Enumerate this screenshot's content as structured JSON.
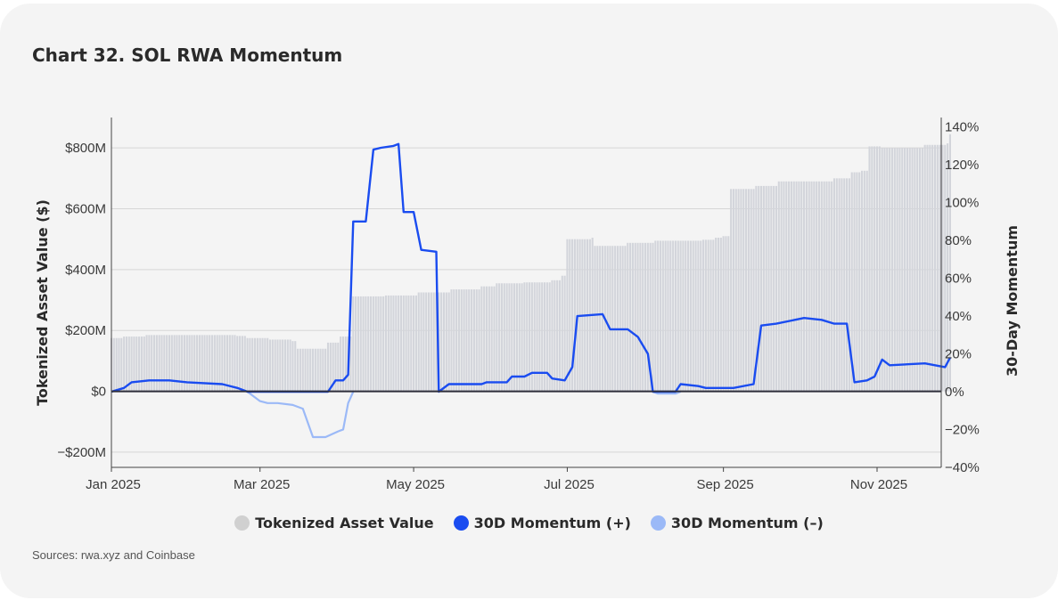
{
  "title": "Chart 32.  SOL RWA Momentum",
  "source": "Sources: rwa.xyz and Coinbase",
  "legend": [
    {
      "label": "Tokenized Asset Value",
      "color": "#d0d0d0"
    },
    {
      "label": "30D Momentum (+)",
      "color": "#1a4cf0"
    },
    {
      "label": "30D Momentum (–)",
      "color": "#9bb9f7"
    }
  ],
  "chart_data": {
    "type": "bar+line",
    "xlabel": "",
    "x_ticks": [
      "Jan 2025",
      "Mar 2025",
      "May 2025",
      "Jul 2025",
      "Sep 2025",
      "Nov 2025"
    ],
    "x_range": [
      "2025-01-01",
      "2025-11-30"
    ],
    "y_left": {
      "label": "Tokenized Asset Value ($)",
      "range": [
        -250,
        900
      ],
      "ticks": [
        "−$200M",
        "$0",
        "$200M",
        "$400M",
        "$600M",
        "$800M"
      ],
      "tick_values": [
        -200,
        0,
        200,
        400,
        600,
        800
      ],
      "unit": "$M"
    },
    "y_right": {
      "label": "30-Day Momentum",
      "range": [
        -40,
        145
      ],
      "ticks": [
        "−40%",
        "−20%",
        "0%",
        "20%",
        "40%",
        "60%",
        "80%",
        "100%",
        "120%",
        "140%"
      ],
      "tick_values": [
        -40,
        -20,
        0,
        20,
        40,
        60,
        80,
        100,
        120,
        140
      ],
      "unit": "%"
    },
    "grid": "horizontal",
    "bars": {
      "name": "Tokenized Asset Value",
      "points": [
        [
          "2025-01-01",
          175
        ],
        [
          "2025-01-06",
          180
        ],
        [
          "2025-01-15",
          185
        ],
        [
          "2025-02-01",
          185
        ],
        [
          "2025-02-20",
          182
        ],
        [
          "2025-02-24",
          175
        ],
        [
          "2025-03-05",
          170
        ],
        [
          "2025-03-14",
          165
        ],
        [
          "2025-03-16",
          140
        ],
        [
          "2025-03-28",
          160
        ],
        [
          "2025-04-02",
          180
        ],
        [
          "2025-04-07",
          312
        ],
        [
          "2025-04-20",
          315
        ],
        [
          "2025-05-03",
          325
        ],
        [
          "2025-05-16",
          335
        ],
        [
          "2025-05-28",
          345
        ],
        [
          "2025-06-03",
          355
        ],
        [
          "2025-06-14",
          358
        ],
        [
          "2025-06-25",
          365
        ],
        [
          "2025-06-29",
          380
        ],
        [
          "2025-07-01",
          500
        ],
        [
          "2025-07-11",
          505
        ],
        [
          "2025-07-12",
          478
        ],
        [
          "2025-07-25",
          488
        ],
        [
          "2025-08-05",
          495
        ],
        [
          "2025-08-24",
          498
        ],
        [
          "2025-08-29",
          505
        ],
        [
          "2025-09-01",
          510
        ],
        [
          "2025-09-04",
          665
        ],
        [
          "2025-09-14",
          675
        ],
        [
          "2025-09-23",
          690
        ],
        [
          "2025-10-15",
          700
        ],
        [
          "2025-10-22",
          720
        ],
        [
          "2025-10-26",
          725
        ],
        [
          "2025-10-29",
          805
        ],
        [
          "2025-11-03",
          800
        ],
        [
          "2025-11-20",
          810
        ],
        [
          "2025-11-29",
          815
        ],
        [
          "2025-11-30",
          845
        ]
      ]
    },
    "series": [
      {
        "name": "30D Momentum (+)",
        "color": "#1a4cf0",
        "points": [
          [
            "2025-01-01",
            0
          ],
          [
            "2025-01-06",
            2
          ],
          [
            "2025-01-09",
            5
          ],
          [
            "2025-01-16",
            6
          ],
          [
            "2025-01-24",
            6
          ],
          [
            "2025-01-31",
            5
          ],
          [
            "2025-02-14",
            4
          ],
          [
            "2025-02-20",
            2
          ],
          [
            "2025-02-24",
            0
          ],
          [
            "2025-03-28",
            0
          ],
          [
            "2025-03-31",
            6
          ],
          [
            "2025-04-03",
            6
          ],
          [
            "2025-04-05",
            9
          ],
          [
            "2025-04-07",
            90
          ],
          [
            "2025-04-12",
            90
          ],
          [
            "2025-04-15",
            128
          ],
          [
            "2025-04-18",
            129
          ],
          [
            "2025-04-23",
            130
          ],
          [
            "2025-04-25",
            131
          ],
          [
            "2025-04-27",
            95
          ],
          [
            "2025-05-01",
            95
          ],
          [
            "2025-05-04",
            75
          ],
          [
            "2025-05-10",
            74
          ],
          [
            "2025-05-11",
            0
          ],
          [
            "2025-05-15",
            4
          ],
          [
            "2025-05-28",
            4
          ],
          [
            "2025-05-30",
            5
          ],
          [
            "2025-06-07",
            5
          ],
          [
            "2025-06-09",
            8
          ],
          [
            "2025-06-14",
            8
          ],
          [
            "2025-06-17",
            10
          ],
          [
            "2025-06-23",
            10
          ],
          [
            "2025-06-25",
            7
          ],
          [
            "2025-06-30",
            6
          ],
          [
            "2025-07-03",
            13
          ],
          [
            "2025-07-05",
            40
          ],
          [
            "2025-07-15",
            41
          ],
          [
            "2025-07-18",
            33
          ],
          [
            "2025-07-25",
            33
          ],
          [
            "2025-07-29",
            29
          ],
          [
            "2025-08-02",
            20
          ],
          [
            "2025-08-04",
            0
          ],
          [
            "2025-08-13",
            0
          ],
          [
            "2025-08-15",
            4
          ],
          [
            "2025-08-22",
            3
          ],
          [
            "2025-08-25",
            2
          ],
          [
            "2025-09-05",
            2
          ],
          [
            "2025-09-13",
            4
          ],
          [
            "2025-09-16",
            35
          ],
          [
            "2025-09-22",
            36
          ],
          [
            "2025-10-03",
            39
          ],
          [
            "2025-10-10",
            38
          ],
          [
            "2025-10-15",
            36
          ],
          [
            "2025-10-20",
            36
          ],
          [
            "2025-10-23",
            5
          ],
          [
            "2025-10-28",
            6
          ],
          [
            "2025-10-31",
            8
          ],
          [
            "2025-11-03",
            17
          ],
          [
            "2025-11-06",
            14
          ],
          [
            "2025-11-20",
            15
          ],
          [
            "2025-11-24",
            14
          ],
          [
            "2025-11-28",
            13
          ],
          [
            "2025-11-30",
            18
          ]
        ]
      },
      {
        "name": "30D Momentum (–)",
        "color": "#9bb9f7",
        "segments": [
          [
            [
              "2025-02-24",
              0
            ],
            [
              "2025-02-26",
              -2
            ],
            [
              "2025-03-01",
              -5
            ],
            [
              "2025-03-04",
              -6
            ],
            [
              "2025-03-08",
              -6
            ],
            [
              "2025-03-14",
              -7
            ],
            [
              "2025-03-18",
              -9
            ],
            [
              "2025-03-22",
              -24
            ],
            [
              "2025-03-27",
              -24
            ],
            [
              "2025-04-01",
              -21
            ],
            [
              "2025-04-03",
              -20
            ],
            [
              "2025-04-05",
              -6
            ],
            [
              "2025-04-07",
              0
            ]
          ],
          [
            [
              "2025-08-04",
              0
            ],
            [
              "2025-08-06",
              -1
            ],
            [
              "2025-08-13",
              -1
            ],
            [
              "2025-08-15",
              0
            ]
          ]
        ]
      }
    ]
  }
}
